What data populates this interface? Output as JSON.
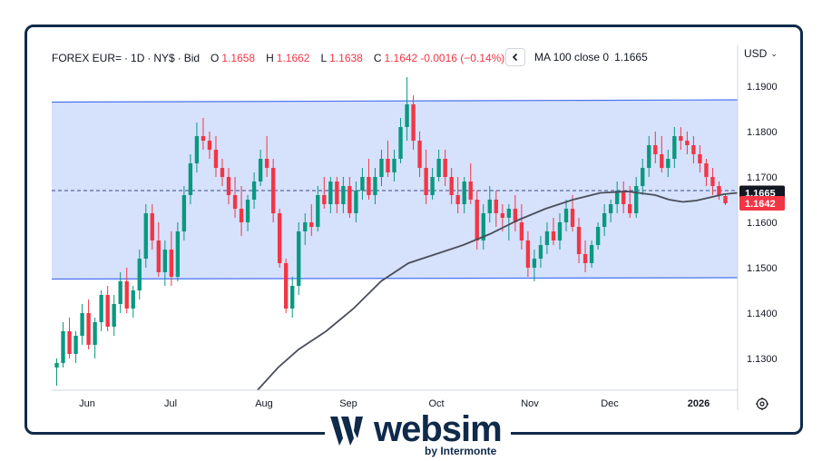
{
  "header": {
    "symbol": "FOREX EUR=",
    "interval": "1D",
    "venue": "NY$",
    "side": "Bid",
    "open_label": "O",
    "open": "1.1658",
    "high_label": "H",
    "high": "1.1662",
    "low_label": "L",
    "low": "1.1638",
    "close_label": "C",
    "close": "1.1642",
    "change": "-0.0016 (−0.14%)",
    "separator": "·"
  },
  "indicator": {
    "collapse_icon": "chevron-left-icon",
    "label": "MA 100 close 0",
    "value": "1.1665"
  },
  "currency": {
    "label": "USD",
    "icon": "chevron-down-icon"
  },
  "settings": {
    "icon": "gear-icon"
  },
  "logo": {
    "word": "websim",
    "sub": "by Intermonte"
  },
  "colors": {
    "up": "#089981",
    "down": "#f23645",
    "ma": "#4a4e5a",
    "channel_fill": "#cfdcfb",
    "channel_line": "#4a72f0",
    "frame": "#0f2a4a",
    "price_ma_badge": "#131722",
    "price_last_badge": "#f23645"
  },
  "chart_data": {
    "type": "candlestick",
    "x_ticks": [
      "Jun",
      "Jul",
      "Aug",
      "Sep",
      "Oct",
      "Nov",
      "Dec",
      "2026"
    ],
    "y_ticks": [
      "1.1300",
      "1.1400",
      "1.1500",
      "1.1600",
      "1.1700",
      "1.1800",
      "1.1900"
    ],
    "ylim": [
      1.123,
      1.193
    ],
    "price_badges": [
      {
        "label": "1.1665",
        "value": 1.1665,
        "kind": "ma"
      },
      {
        "label": "1.1642",
        "value": 1.1642,
        "kind": "last"
      }
    ],
    "ma_dashed_level": 1.167,
    "channel": {
      "upper": [
        [
          0,
          1.1865
        ],
        [
          1,
          1.187
        ]
      ],
      "lower": [
        [
          0,
          1.1475
        ],
        [
          1,
          1.1478
        ]
      ]
    },
    "ohlc": [
      [
        1.128,
        1.13,
        1.124,
        1.129
      ],
      [
        1.129,
        1.138,
        1.128,
        1.136
      ],
      [
        1.136,
        1.139,
        1.13,
        1.131
      ],
      [
        1.131,
        1.136,
        1.129,
        1.135
      ],
      [
        1.135,
        1.142,
        1.133,
        1.14
      ],
      [
        1.14,
        1.143,
        1.132,
        1.133
      ],
      [
        1.133,
        1.139,
        1.13,
        1.138
      ],
      [
        1.138,
        1.145,
        1.136,
        1.144
      ],
      [
        1.144,
        1.146,
        1.136,
        1.137
      ],
      [
        1.137,
        1.144,
        1.135,
        1.142
      ],
      [
        1.142,
        1.149,
        1.14,
        1.147
      ],
      [
        1.147,
        1.15,
        1.14,
        1.141
      ],
      [
        1.141,
        1.146,
        1.139,
        1.145
      ],
      [
        1.145,
        1.154,
        1.143,
        1.152
      ],
      [
        1.152,
        1.164,
        1.15,
        1.162
      ],
      [
        1.162,
        1.164,
        1.154,
        1.156
      ],
      [
        1.156,
        1.16,
        1.148,
        1.149
      ],
      [
        1.149,
        1.156,
        1.146,
        1.154
      ],
      [
        1.154,
        1.158,
        1.146,
        1.148
      ],
      [
        1.148,
        1.16,
        1.147,
        1.158
      ],
      [
        1.158,
        1.168,
        1.156,
        1.166
      ],
      [
        1.166,
        1.175,
        1.164,
        1.173
      ],
      [
        1.173,
        1.182,
        1.171,
        1.179
      ],
      [
        1.179,
        1.183,
        1.176,
        1.178
      ],
      [
        1.178,
        1.18,
        1.174,
        1.176
      ],
      [
        1.176,
        1.179,
        1.17,
        1.172
      ],
      [
        1.172,
        1.174,
        1.168,
        1.17
      ],
      [
        1.17,
        1.172,
        1.164,
        1.166
      ],
      [
        1.166,
        1.17,
        1.161,
        1.163
      ],
      [
        1.163,
        1.168,
        1.157,
        1.16
      ],
      [
        1.16,
        1.166,
        1.158,
        1.165
      ],
      [
        1.165,
        1.171,
        1.163,
        1.169
      ],
      [
        1.169,
        1.176,
        1.168,
        1.174
      ],
      [
        1.174,
        1.179,
        1.17,
        1.172
      ],
      [
        1.172,
        1.174,
        1.16,
        1.162
      ],
      [
        1.162,
        1.163,
        1.15,
        1.151
      ],
      [
        1.151,
        1.152,
        1.14,
        1.141
      ],
      [
        1.141,
        1.148,
        1.139,
        1.146
      ],
      [
        1.146,
        1.16,
        1.144,
        1.158
      ],
      [
        1.158,
        1.162,
        1.155,
        1.16
      ],
      [
        1.16,
        1.164,
        1.157,
        1.159
      ],
      [
        1.159,
        1.168,
        1.158,
        1.166
      ],
      [
        1.166,
        1.17,
        1.163,
        1.164
      ],
      [
        1.164,
        1.17,
        1.162,
        1.169
      ],
      [
        1.169,
        1.17,
        1.162,
        1.164
      ],
      [
        1.164,
        1.17,
        1.162,
        1.168
      ],
      [
        1.168,
        1.17,
        1.161,
        1.162
      ],
      [
        1.162,
        1.169,
        1.16,
        1.167
      ],
      [
        1.167,
        1.172,
        1.165,
        1.17
      ],
      [
        1.17,
        1.174,
        1.165,
        1.166
      ],
      [
        1.166,
        1.172,
        1.164,
        1.17
      ],
      [
        1.17,
        1.176,
        1.168,
        1.174
      ],
      [
        1.174,
        1.178,
        1.17,
        1.171
      ],
      [
        1.171,
        1.176,
        1.169,
        1.174
      ],
      [
        1.174,
        1.183,
        1.173,
        1.181
      ],
      [
        1.181,
        1.192,
        1.178,
        1.186
      ],
      [
        1.186,
        1.188,
        1.176,
        1.178
      ],
      [
        1.178,
        1.18,
        1.17,
        1.172
      ],
      [
        1.172,
        1.176,
        1.164,
        1.166
      ],
      [
        1.166,
        1.172,
        1.165,
        1.17
      ],
      [
        1.17,
        1.176,
        1.169,
        1.174
      ],
      [
        1.174,
        1.176,
        1.168,
        1.17
      ],
      [
        1.17,
        1.172,
        1.164,
        1.166
      ],
      [
        1.166,
        1.17,
        1.162,
        1.164
      ],
      [
        1.164,
        1.17,
        1.162,
        1.169
      ],
      [
        1.169,
        1.173,
        1.164,
        1.165
      ],
      [
        1.165,
        1.167,
        1.154,
        1.156
      ],
      [
        1.156,
        1.164,
        1.154,
        1.162
      ],
      [
        1.162,
        1.168,
        1.16,
        1.165
      ],
      [
        1.165,
        1.167,
        1.159,
        1.162
      ],
      [
        1.162,
        1.164,
        1.158,
        1.161
      ],
      [
        1.161,
        1.164,
        1.156,
        1.163
      ],
      [
        1.163,
        1.166,
        1.158,
        1.16
      ],
      [
        1.16,
        1.164,
        1.154,
        1.156
      ],
      [
        1.156,
        1.158,
        1.148,
        1.15
      ],
      [
        1.15,
        1.154,
        1.147,
        1.152
      ],
      [
        1.152,
        1.157,
        1.15,
        1.155
      ],
      [
        1.155,
        1.16,
        1.153,
        1.158
      ],
      [
        1.158,
        1.161,
        1.155,
        1.156
      ],
      [
        1.156,
        1.162,
        1.154,
        1.16
      ],
      [
        1.16,
        1.165,
        1.158,
        1.163
      ],
      [
        1.163,
        1.166,
        1.158,
        1.159
      ],
      [
        1.159,
        1.161,
        1.151,
        1.153
      ],
      [
        1.153,
        1.156,
        1.149,
        1.151
      ],
      [
        1.151,
        1.156,
        1.15,
        1.155
      ],
      [
        1.155,
        1.16,
        1.154,
        1.159
      ],
      [
        1.159,
        1.164,
        1.157,
        1.162
      ],
      [
        1.162,
        1.165,
        1.16,
        1.164
      ],
      [
        1.164,
        1.169,
        1.162,
        1.167
      ],
      [
        1.167,
        1.169,
        1.162,
        1.164
      ],
      [
        1.164,
        1.168,
        1.161,
        1.162
      ],
      [
        1.162,
        1.17,
        1.161,
        1.168
      ],
      [
        1.168,
        1.174,
        1.166,
        1.172
      ],
      [
        1.172,
        1.179,
        1.17,
        1.177
      ],
      [
        1.177,
        1.18,
        1.173,
        1.175
      ],
      [
        1.175,
        1.179,
        1.171,
        1.172
      ],
      [
        1.172,
        1.176,
        1.17,
        1.174
      ],
      [
        1.174,
        1.181,
        1.172,
        1.179
      ],
      [
        1.179,
        1.181,
        1.176,
        1.178
      ],
      [
        1.178,
        1.18,
        1.175,
        1.177
      ],
      [
        1.177,
        1.179,
        1.173,
        1.175
      ],
      [
        1.175,
        1.177,
        1.171,
        1.173
      ],
      [
        1.173,
        1.174,
        1.168,
        1.17
      ],
      [
        1.17,
        1.172,
        1.166,
        1.168
      ],
      [
        1.168,
        1.169,
        1.165,
        1.166
      ],
      [
        1.1658,
        1.1662,
        1.1638,
        1.1642
      ]
    ],
    "ma100": [
      [
        0.3,
        1.123
      ],
      [
        0.33,
        1.128
      ],
      [
        0.36,
        1.132
      ],
      [
        0.4,
        1.136
      ],
      [
        0.44,
        1.141
      ],
      [
        0.48,
        1.147
      ],
      [
        0.52,
        1.151
      ],
      [
        0.56,
        1.153
      ],
      [
        0.6,
        1.155
      ],
      [
        0.64,
        1.1575
      ],
      [
        0.68,
        1.1605
      ],
      [
        0.72,
        1.163
      ],
      [
        0.76,
        1.165
      ],
      [
        0.8,
        1.1665
      ],
      [
        0.84,
        1.1668
      ],
      [
        0.88,
        1.166
      ],
      [
        0.9,
        1.165
      ],
      [
        0.92,
        1.1645
      ],
      [
        0.94,
        1.1648
      ],
      [
        0.96,
        1.1655
      ],
      [
        0.98,
        1.1662
      ],
      [
        1.0,
        1.1665
      ]
    ]
  }
}
